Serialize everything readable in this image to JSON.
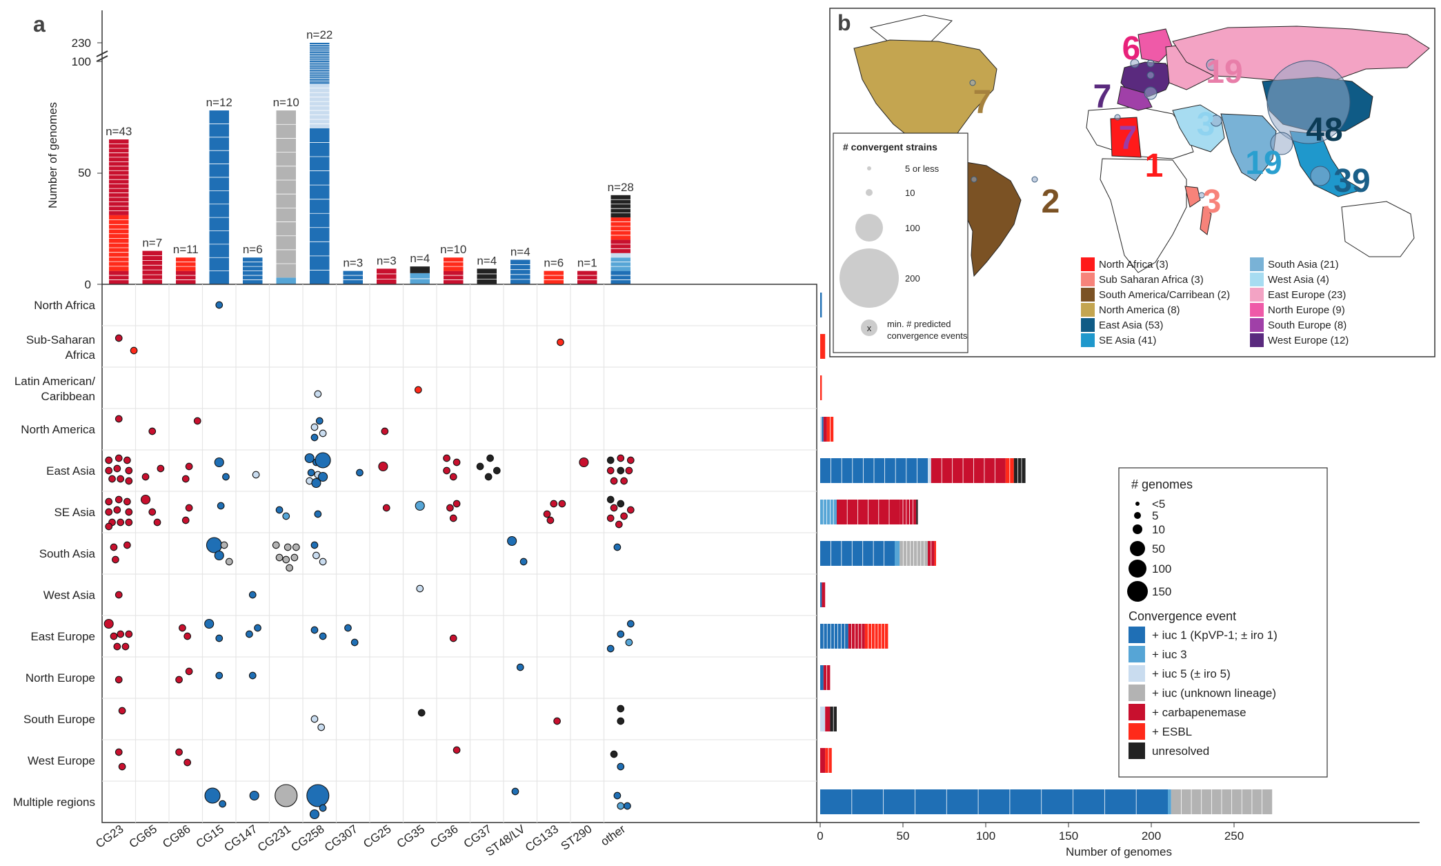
{
  "panel_a": {
    "letter": "a",
    "y_axis_label": "Number of genomes",
    "y_ticks": [
      "0",
      "50",
      "100",
      "230"
    ],
    "x_axis_label": "Number of genomes",
    "x_ticks": [
      "0",
      "50",
      "100",
      "150",
      "200",
      "250"
    ]
  },
  "panel_b": {
    "letter": "b",
    "size_legend_title": "# convergent strains",
    "size_legend_items": [
      "5 or less",
      "10",
      "100",
      "200"
    ],
    "min_label_symbol": "x",
    "min_label_line1": "min. # predicted",
    "min_label_line2": "convergence events"
  },
  "legend_genomes": {
    "title": "# genomes",
    "items": [
      "<5",
      "5",
      "10",
      "50",
      "100",
      "150"
    ]
  },
  "legend_convergence": {
    "title": "Convergence event",
    "items": [
      {
        "label": "+ iuc 1 (KpVP-1; ± iro 1)",
        "color": "#1f6fb5"
      },
      {
        "label": "+ iuc 3",
        "color": "#56a5d6"
      },
      {
        "label": "+ iuc 5 (± iro 5)",
        "color": "#c9dcef"
      },
      {
        "label": "+ iuc (unknown lineage)",
        "color": "#b3b3b3"
      },
      {
        "label": "+ carbapenemase",
        "color": "#c8102e"
      },
      {
        "label": "+ ESBL",
        "color": "#ff2a1a"
      },
      {
        "label": "unresolved",
        "color": "#222222"
      }
    ]
  },
  "map_legend_regions": [
    {
      "label": "North Africa (3)",
      "color": "#ff1a1a"
    },
    {
      "label": "Sub Saharan Africa (3)",
      "color": "#f7837a"
    },
    {
      "label": "South America/Carribean (2)",
      "color": "#7b5224"
    },
    {
      "label": "North America (8)",
      "color": "#c4a550"
    },
    {
      "label": "East Asia (53)",
      "color": "#0f5b86"
    },
    {
      "label": "SE Asia (41)",
      "color": "#1f98cc"
    },
    {
      "label": "South Asia (21)",
      "color": "#79b2d6"
    },
    {
      "label": "West Asia (4)",
      "color": "#a7dcf1"
    },
    {
      "label": "East Europe (23)",
      "color": "#f3a3c4"
    },
    {
      "label": "North Europe (9)",
      "color": "#ef5aa8"
    },
    {
      "label": "South Europe (8)",
      "color": "#a040a8"
    },
    {
      "label": "West Europe (12)",
      "color": "#5a2a7e"
    }
  ],
  "map_numbers": [
    {
      "label": "6",
      "color": "#e8217a"
    },
    {
      "label": "19",
      "color": "#e87ea9"
    },
    {
      "label": "7",
      "color": "#a5813d"
    },
    {
      "label": "7",
      "color": "#5a2a7e"
    },
    {
      "label": "7",
      "color": "#9c3ca6"
    },
    {
      "label": "3",
      "color": "#8fd3f0"
    },
    {
      "label": "48",
      "color": "#0b3b55"
    },
    {
      "label": "1",
      "color": "#ff1a1a"
    },
    {
      "label": "19",
      "color": "#2a9fcf"
    },
    {
      "label": "39",
      "color": "#1a5f88"
    },
    {
      "label": "2",
      "color": "#7b5224"
    },
    {
      "label": "3",
      "color": "#f7837a"
    }
  ],
  "chart_data": [
    {
      "type": "bar",
      "name_hint": "top stacked bar chart of genomes per clonal group",
      "categories": [
        "CG23",
        "CG65",
        "CG86",
        "CG15",
        "CG147",
        "CG231",
        "CG258",
        "CG307",
        "CG25",
        "CG35",
        "CG36",
        "CG37",
        "ST48/LV",
        "CG133",
        "ST290",
        "other"
      ],
      "n_labels": [
        "n=43",
        "n=7",
        "n=11",
        "n=12",
        "n=6",
        "n=10",
        "n=22",
        "n=3",
        "n=3",
        "n=4",
        "n=10",
        "n=4",
        "n=4",
        "n=6",
        "n=1",
        "n=28"
      ],
      "totals": [
        65,
        15,
        12,
        78,
        12,
        78,
        230,
        6,
        7,
        8,
        12,
        7,
        11,
        6,
        6,
        40
      ],
      "ylabel": "Number of genomes",
      "y_break": [
        100,
        230
      ]
    },
    {
      "type": "scatter",
      "name_hint": "dot matrix of region vs clonal group",
      "regions": [
        "North Africa",
        "Sub-Saharan Africa",
        "Latin American/ Caribbean",
        "North America",
        "East Asia",
        "SE Asia",
        "South Asia",
        "West Asia",
        "East Europe",
        "North Europe",
        "South Europe",
        "West Europe",
        "Multiple regions"
      ]
    },
    {
      "type": "bar",
      "name_hint": "horizontal stacked bars of genomes per region",
      "regions": [
        "North Africa",
        "Sub-Saharan Africa",
        "Latin American/ Caribbean",
        "North America",
        "East Asia",
        "SE Asia",
        "South Asia",
        "West Asia",
        "East Europe",
        "North Europe",
        "South Europe",
        "West Europe",
        "Multiple regions"
      ],
      "totals": [
        1,
        3,
        1,
        8,
        124,
        59,
        70,
        3,
        41,
        6,
        10,
        7,
        273
      ],
      "xlabel": "Number of genomes",
      "xlim": [
        0,
        275
      ]
    }
  ]
}
